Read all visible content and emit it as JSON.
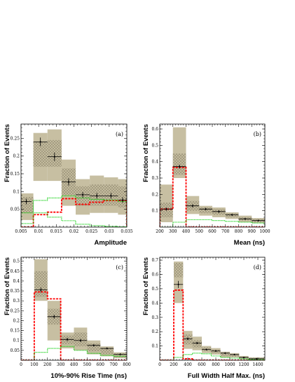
{
  "colors": {
    "band": "#c7bfa2",
    "hatch": "#a69d82",
    "data": "#000000",
    "red": "#ff0000",
    "green": "#00cc00"
  },
  "chart_data": [
    {
      "type": "bar",
      "panel_tag": "(a)",
      "xlabel": "Amplitude",
      "ylabel": "Fraction of Events",
      "xlim": [
        0.005,
        0.035
      ],
      "ylim": [
        0,
        0.29
      ],
      "xticks": [
        0.005,
        0.01,
        0.015,
        0.02,
        0.025,
        0.03,
        0.035
      ],
      "xtick_labels": [
        "0.005",
        "0.01",
        "0.015",
        "0.02",
        "0.025",
        "0.03",
        "0.035"
      ],
      "yticks": [
        0.05,
        0.1,
        0.15,
        0.2,
        0.25
      ],
      "ytick_labels": [
        "0.05",
        "0.1",
        "0.15",
        "0.2",
        "0.25"
      ],
      "bin_edges": [
        0.005,
        0.0085,
        0.0125,
        0.0165,
        0.0205,
        0.0245,
        0.0285,
        0.0325,
        0.035
      ],
      "band_low": [
        0.02,
        0.13,
        0.13,
        0.06,
        0.035,
        0.04,
        0.04,
        0.035
      ],
      "band_high": [
        0.095,
        0.265,
        0.275,
        0.19,
        0.135,
        0.145,
        0.14,
        0.135
      ],
      "hatch_low": [
        0.04,
        0.17,
        0.17,
        0.09,
        0.06,
        0.06,
        0.06,
        0.055
      ],
      "hatch_high": [
        0.085,
        0.24,
        0.245,
        0.165,
        0.115,
        0.12,
        0.12,
        0.115
      ],
      "points": [
        {
          "x": 0.0065,
          "y": 0.072,
          "err": 0.008,
          "xerr": 0.0015
        },
        {
          "x": 0.0105,
          "y": 0.24,
          "err": 0.012,
          "xerr": 0.002
        },
        {
          "x": 0.0145,
          "y": 0.198,
          "err": 0.012,
          "xerr": 0.002
        },
        {
          "x": 0.0185,
          "y": 0.127,
          "err": 0.01,
          "xerr": 0.002
        },
        {
          "x": 0.0225,
          "y": 0.091,
          "err": 0.008,
          "xerr": 0.002
        },
        {
          "x": 0.0265,
          "y": 0.088,
          "err": 0.008,
          "xerr": 0.002
        },
        {
          "x": 0.0305,
          "y": 0.088,
          "err": 0.008,
          "xerr": 0.002
        },
        {
          "x": 0.0338,
          "y": 0.076,
          "err": 0.008,
          "xerr": 0.0012
        }
      ],
      "series": [
        {
          "style": "red",
          "values": [
            0.0,
            0.035,
            0.042,
            0.08,
            0.064,
            0.07,
            0.075,
            0.075
          ]
        },
        {
          "style": "green",
          "values": [
            0.04,
            0.075,
            0.082,
            0.088,
            0.082,
            0.078,
            0.076,
            0.072
          ]
        },
        {
          "style": "green",
          "values": [
            0.01,
            0.04,
            0.028,
            0.018,
            0.008,
            0.004,
            0.002,
            0.001
          ]
        }
      ]
    },
    {
      "type": "bar",
      "panel_tag": "(b)",
      "xlabel": "Mean (ns)",
      "ylabel": "Fraction of Events",
      "xlim": [
        200,
        1000
      ],
      "ylim": [
        0,
        0.63
      ],
      "xticks": [
        200,
        300,
        400,
        500,
        600,
        700,
        800,
        900,
        1000
      ],
      "xtick_labels": [
        "200",
        "300",
        "400",
        "500",
        "600",
        "700",
        "800",
        "900",
        "1000"
      ],
      "yticks": [
        0.1,
        0.2,
        0.3,
        0.4,
        0.5,
        0.6
      ],
      "ytick_labels": [
        "0.1",
        "0.2",
        "0.3",
        "0.4",
        "0.5",
        "0.6"
      ],
      "bin_edges": [
        200,
        300,
        400,
        500,
        600,
        700,
        800,
        900,
        1000
      ],
      "band_low": [
        0.03,
        0.3,
        0.08,
        0.07,
        0.06,
        0.05,
        0.03,
        0.025
      ],
      "band_high": [
        0.26,
        0.61,
        0.19,
        0.13,
        0.12,
        0.09,
        0.07,
        0.055
      ],
      "hatch_low": [
        0.06,
        0.32,
        0.1,
        0.085,
        0.075,
        0.06,
        0.04,
        0.03
      ],
      "hatch_high": [
        0.15,
        0.45,
        0.16,
        0.12,
        0.11,
        0.085,
        0.06,
        0.05
      ],
      "points": [
        {
          "x": 250,
          "y": 0.11,
          "err": 0.01,
          "xerr": 50
        },
        {
          "x": 350,
          "y": 0.37,
          "err": 0.012,
          "xerr": 50
        },
        {
          "x": 450,
          "y": 0.13,
          "err": 0.01,
          "xerr": 50
        },
        {
          "x": 550,
          "y": 0.11,
          "err": 0.008,
          "xerr": 50
        },
        {
          "x": 650,
          "y": 0.095,
          "err": 0.008,
          "xerr": 50
        },
        {
          "x": 750,
          "y": 0.075,
          "err": 0.006,
          "xerr": 50
        },
        {
          "x": 850,
          "y": 0.05,
          "err": 0.005,
          "xerr": 50
        },
        {
          "x": 950,
          "y": 0.04,
          "err": 0.005,
          "xerr": 50
        }
      ],
      "series": [
        {
          "style": "red",
          "values": [
            0.11,
            0.365,
            0.0,
            0.0,
            0.0,
            0.0,
            0.0,
            0.0
          ]
        },
        {
          "style": "green",
          "values": [
            0.0,
            0.03,
            0.045,
            0.045,
            0.04,
            0.035,
            0.03,
            0.025
          ]
        }
      ]
    },
    {
      "type": "bar",
      "panel_tag": "(c)",
      "xlabel": "10%-90% Rise Time (ns)",
      "ylabel": "Fraction of Events",
      "xlim": [
        0,
        800
      ],
      "ylim": [
        0,
        0.52
      ],
      "xticks": [
        0,
        100,
        200,
        300,
        400,
        500,
        600,
        700,
        800
      ],
      "xtick_labels": [
        "0",
        "100",
        "200",
        "300",
        "400",
        "500",
        "600",
        "700",
        "800"
      ],
      "yticks": [
        0.05,
        0.1,
        0.15,
        0.2,
        0.25,
        0.3,
        0.35,
        0.4,
        0.45,
        0.5
      ],
      "ytick_labels": [
        "0.05",
        "0.1",
        "0.15",
        "0.2",
        "0.25",
        "0.3",
        "0.35",
        "0.4",
        "0.45",
        "0.5"
      ],
      "bin_edges": [
        0,
        100,
        200,
        300,
        400,
        500,
        600,
        700,
        800
      ],
      "band_low": [
        0.0,
        0.3,
        0.1,
        0.06,
        0.05,
        0.03,
        0.02,
        0.01
      ],
      "band_high": [
        0.0,
        0.51,
        0.3,
        0.14,
        0.165,
        0.1,
        0.07,
        0.04
      ],
      "hatch_low": [
        0.0,
        0.32,
        0.18,
        0.08,
        0.07,
        0.045,
        0.03,
        0.015
      ],
      "hatch_high": [
        0.0,
        0.45,
        0.26,
        0.125,
        0.14,
        0.085,
        0.06,
        0.035
      ],
      "points": [
        {
          "x": 150,
          "y": 0.355,
          "err": 0.012,
          "xerr": 50
        },
        {
          "x": 250,
          "y": 0.22,
          "err": 0.01,
          "xerr": 50
        },
        {
          "x": 350,
          "y": 0.105,
          "err": 0.008,
          "xerr": 50
        },
        {
          "x": 450,
          "y": 0.1,
          "err": 0.008,
          "xerr": 50
        },
        {
          "x": 550,
          "y": 0.075,
          "err": 0.006,
          "xerr": 50
        },
        {
          "x": 650,
          "y": 0.06,
          "err": 0.005,
          "xerr": 50
        },
        {
          "x": 750,
          "y": 0.03,
          "err": 0.004,
          "xerr": 50
        }
      ],
      "series": [
        {
          "style": "red",
          "values": [
            0.0,
            0.345,
            0.31,
            0.0,
            0.0,
            0.0,
            0.0,
            0.0
          ]
        },
        {
          "style": "green",
          "values": [
            0.0,
            0.04,
            0.06,
            0.07,
            0.05,
            0.035,
            0.025,
            0.02
          ]
        }
      ]
    },
    {
      "type": "bar",
      "panel_tag": "(d)",
      "xlabel": "Full Width Half Max. (ns)",
      "ylabel": "Fraction of Events",
      "xlim": [
        0,
        1500
      ],
      "ylim": [
        0,
        0.72
      ],
      "xticks": [
        0,
        200,
        400,
        600,
        800,
        1000,
        1200,
        1400
      ],
      "xtick_labels": [
        "0",
        "200",
        "400",
        "600",
        "800",
        "1000",
        "1200",
        "1400"
      ],
      "yticks": [
        0.1,
        0.2,
        0.3,
        0.4,
        0.5,
        0.6,
        0.7
      ],
      "ytick_labels": [
        "0.1",
        "0.2",
        "0.3",
        "0.4",
        "0.5",
        "0.6",
        "0.7"
      ],
      "bin_edges": [
        0,
        200,
        333,
        466,
        600,
        733,
        866,
        1000,
        1133,
        1266,
        1500
      ],
      "band_low": [
        0.0,
        0.4,
        0.08,
        0.07,
        0.05,
        0.04,
        0.02,
        0.02,
        0.01,
        0.01
      ],
      "band_high": [
        0.0,
        0.69,
        0.205,
        0.165,
        0.1,
        0.085,
        0.06,
        0.05,
        0.03,
        0.02
      ],
      "hatch_low": [
        0.0,
        0.58,
        0.11,
        0.09,
        0.065,
        0.05,
        0.03,
        0.025,
        0.015,
        0.01
      ],
      "hatch_high": [
        0.0,
        0.68,
        0.18,
        0.14,
        0.09,
        0.075,
        0.05,
        0.04,
        0.025,
        0.018
      ],
      "points": [
        {
          "x": 266,
          "y": 0.53,
          "err": 0.025,
          "xerr": 66
        },
        {
          "x": 400,
          "y": 0.15,
          "err": 0.01,
          "xerr": 66
        },
        {
          "x": 533,
          "y": 0.12,
          "err": 0.008,
          "xerr": 66
        },
        {
          "x": 666,
          "y": 0.075,
          "err": 0.006,
          "xerr": 66
        },
        {
          "x": 800,
          "y": 0.065,
          "err": 0.005,
          "xerr": 66
        },
        {
          "x": 933,
          "y": 0.05,
          "err": 0.005,
          "xerr": 66
        },
        {
          "x": 1066,
          "y": 0.04,
          "err": 0.004,
          "xerr": 66
        },
        {
          "x": 1200,
          "y": 0.02,
          "err": 0.003,
          "xerr": 66
        },
        {
          "x": 1380,
          "y": 0.01,
          "err": 0.003,
          "xerr": 110
        }
      ],
      "series": [
        {
          "style": "red",
          "values": [
            0.0,
            0.49,
            0.01,
            0.0,
            0.0,
            0.0,
            0.0,
            0.0,
            0.0,
            0.0
          ]
        },
        {
          "style": "green",
          "values": [
            0.0,
            0.02,
            0.04,
            0.05,
            0.045,
            0.03,
            0.02,
            0.015,
            0.01,
            0.005
          ]
        }
      ]
    }
  ]
}
